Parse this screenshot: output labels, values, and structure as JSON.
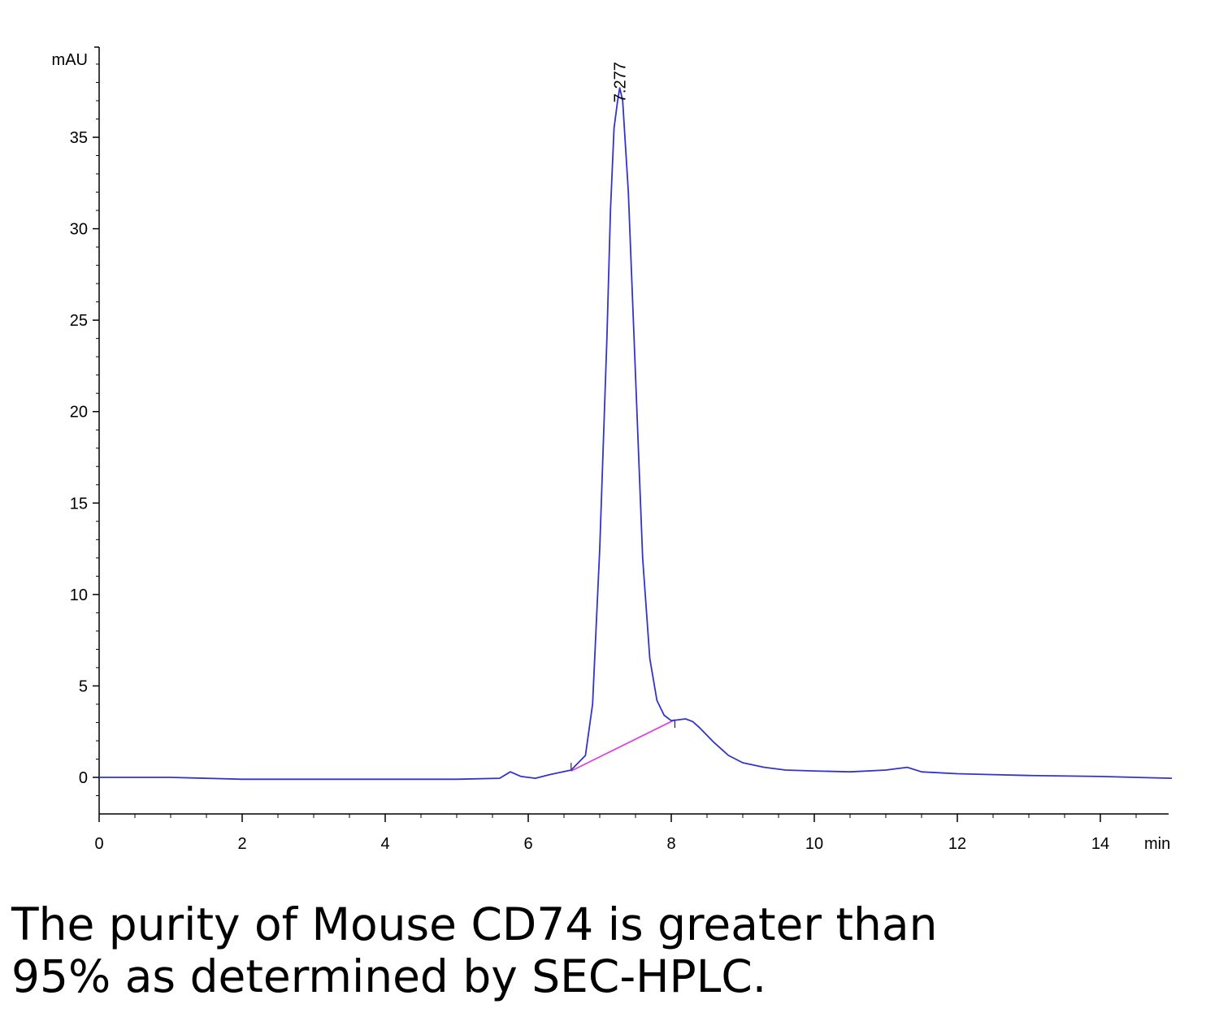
{
  "chart_data": {
    "type": "line",
    "ylabel": "mAU",
    "xlabel": "min",
    "xlim": [
      0,
      15
    ],
    "ylim": [
      -2,
      40
    ],
    "x_ticks": [
      0,
      2,
      4,
      6,
      8,
      10,
      12,
      14
    ],
    "y_ticks": [
      0,
      5,
      10,
      15,
      20,
      25,
      30,
      35
    ],
    "peak_label": "7.277",
    "peak_x": 7.277,
    "series": [
      {
        "color": "#3333cc",
        "x": [
          0,
          1,
          2,
          3,
          4,
          5,
          5.6,
          5.75,
          5.9,
          6.1,
          6.3,
          6.6,
          6.8,
          6.9,
          7.0,
          7.1,
          7.15,
          7.2,
          7.25,
          7.28,
          7.32,
          7.4,
          7.5,
          7.6,
          7.7,
          7.8,
          7.9,
          8.0,
          8.1,
          8.2,
          8.3,
          8.4,
          8.6,
          8.8,
          9.0,
          9.3,
          9.6,
          10.0,
          10.5,
          11.0,
          11.3,
          11.5,
          12.0,
          12.5,
          13.0,
          14.0,
          15.0
        ],
        "y": [
          0,
          0,
          -0.1,
          -0.1,
          -0.1,
          -0.1,
          -0.05,
          0.3,
          0.05,
          -0.05,
          0.15,
          0.4,
          1.2,
          4.0,
          12.5,
          24.0,
          31.0,
          35.5,
          37.0,
          37.7,
          37.0,
          32.0,
          22.0,
          12.0,
          6.5,
          4.2,
          3.4,
          3.1,
          3.15,
          3.2,
          3.05,
          2.7,
          1.9,
          1.2,
          0.8,
          0.55,
          0.4,
          0.35,
          0.3,
          0.4,
          0.55,
          0.3,
          0.2,
          0.15,
          0.1,
          0.05,
          -0.05
        ]
      }
    ],
    "baseline": {
      "color": "#dd44dd",
      "x": [
        6.6,
        8.05
      ],
      "y": [
        0.35,
        3.15
      ]
    }
  },
  "caption": {
    "line1": "The purity of Mouse CD74 is greater than",
    "line2": "95% as determined by SEC-HPLC."
  }
}
